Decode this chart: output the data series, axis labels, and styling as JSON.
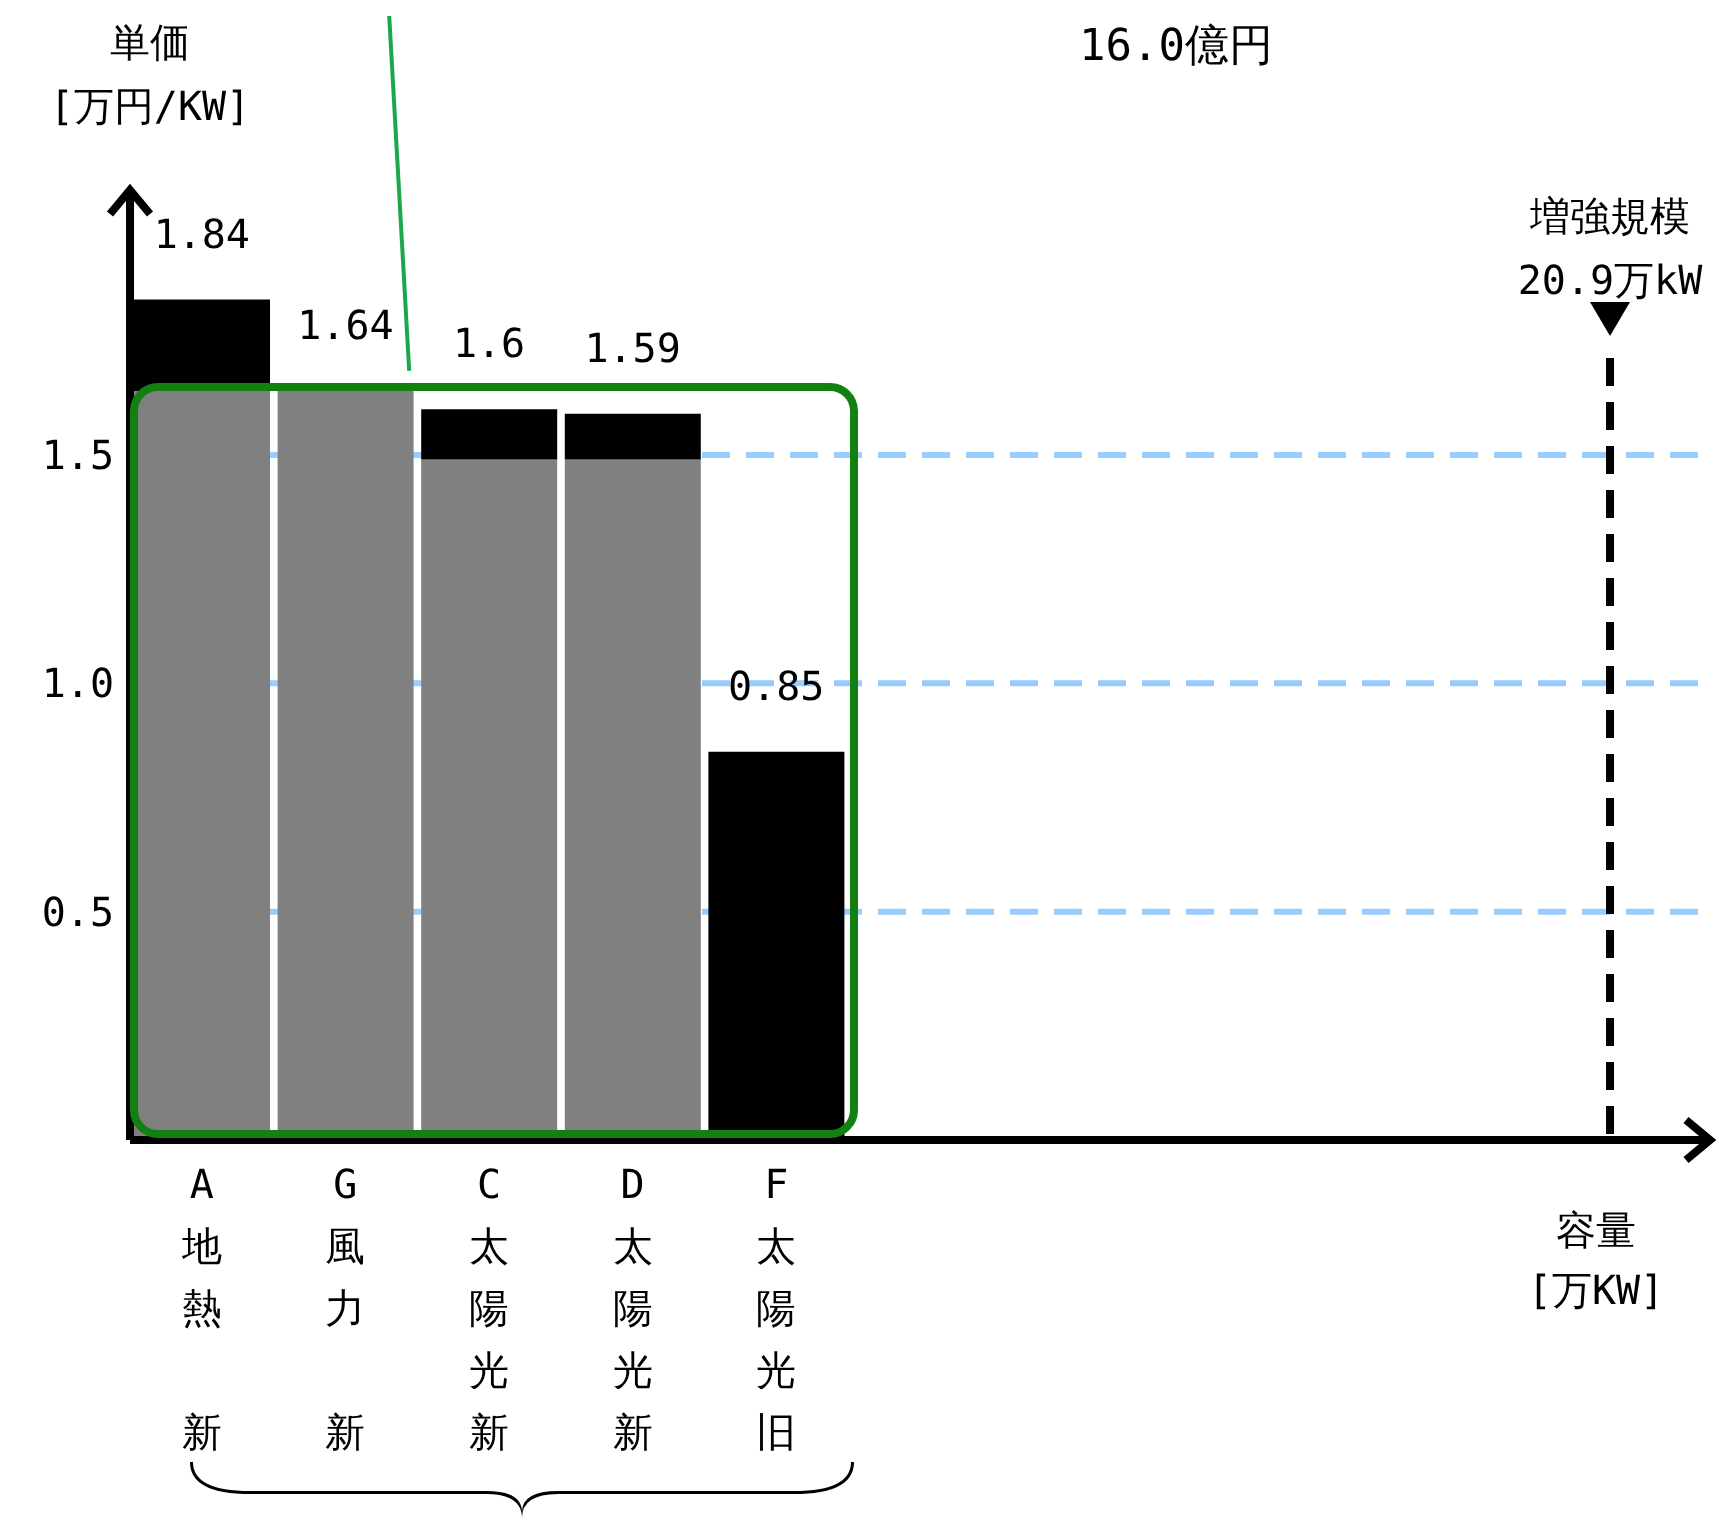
{
  "chart_data": {
    "type": "bar",
    "stacked": true,
    "ylabel": "単価\n[万円/KW]",
    "categories": [
      "A地熱新",
      "G風力新",
      "C太陽光新",
      "D太陽光新",
      "F太陽光旧"
    ],
    "ylim": [
      0,
      2.08
    ],
    "yticks": [
      0.5,
      {
        "value": 1,
        "label": "1.0"
      },
      1.5
    ],
    "series": [
      {
        "color": "#808080",
        "values": [
          1.64,
          1.64,
          1.49,
          1.49,
          0
        ]
      },
      {
        "color": "#000000",
        "values": [
          0.2,
          0,
          0.11,
          0.1,
          0.85
        ]
      }
    ],
    "totals": [
      "1.84",
      "1.64",
      "1.6",
      "1.59",
      "0.85"
    ],
    "grid": "y",
    "annotations": [
      "16.0億円",
      "増強規模",
      "20.9万kW",
      "容量\n[万KW]"
    ]
  }
}
